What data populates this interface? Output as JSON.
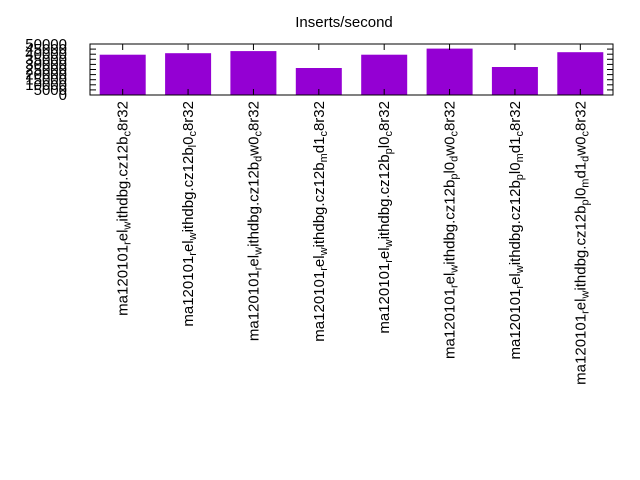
{
  "chart_data": {
    "type": "bar",
    "title": "Inserts/second",
    "xlabel": "",
    "ylabel": "",
    "ylim": [
      0,
      50000
    ],
    "yticks": [
      "0",
      "5000",
      "10000",
      "15000",
      "20000",
      "25000",
      "30000",
      "35000",
      "40000",
      "45000",
      "50000"
    ],
    "grid": false,
    "legend": "none",
    "bar_color": "#9400d3",
    "categories": [
      "ma120101_rel_withdbg.cz12b_c8r32",
      "ma120101_rel_withdbg.cz12b_l0_c8r32",
      "ma120101_rel_withdbg.cz12b_dw0_c8r32",
      "ma120101_rel_withdbg.cz12b_md1_c8r32",
      "ma120101_rel_withdbg.cz12b_pl0_c8r32",
      "ma120101_rel_withdbg.cz12b_pl0_dw0_c8r32",
      "ma120101_rel_withdbg.cz12b_pl0_md1_c8r32",
      "ma120101_rel_withdbg.cz12b_pl0_md1_dw0_c8r32"
    ],
    "category_parts": [
      [
        [
          "ma120101",
          false
        ],
        [
          "r",
          true
        ],
        [
          "el",
          false
        ],
        [
          "w",
          true
        ],
        [
          "ithdbg.cz12b",
          false
        ],
        [
          "c",
          true
        ],
        [
          "8r32",
          false
        ]
      ],
      [
        [
          "ma120101",
          false
        ],
        [
          "r",
          true
        ],
        [
          "el",
          false
        ],
        [
          "w",
          true
        ],
        [
          "ithdbg.cz12b",
          false
        ],
        [
          "l",
          true
        ],
        [
          "0",
          false
        ],
        [
          "c",
          true
        ],
        [
          "8r32",
          false
        ]
      ],
      [
        [
          "ma120101",
          false
        ],
        [
          "r",
          true
        ],
        [
          "el",
          false
        ],
        [
          "w",
          true
        ],
        [
          "ithdbg.cz12b",
          false
        ],
        [
          "d",
          true
        ],
        [
          "w0",
          false
        ],
        [
          "c",
          true
        ],
        [
          "8r32",
          false
        ]
      ],
      [
        [
          "ma120101",
          false
        ],
        [
          "r",
          true
        ],
        [
          "el",
          false
        ],
        [
          "w",
          true
        ],
        [
          "ithdbg.cz12b",
          false
        ],
        [
          "m",
          true
        ],
        [
          "d1",
          false
        ],
        [
          "c",
          true
        ],
        [
          "8r32",
          false
        ]
      ],
      [
        [
          "ma120101",
          false
        ],
        [
          "r",
          true
        ],
        [
          "el",
          false
        ],
        [
          "w",
          true
        ],
        [
          "ithdbg.cz12b",
          false
        ],
        [
          "p",
          true
        ],
        [
          "l0",
          false
        ],
        [
          "c",
          true
        ],
        [
          "8r32",
          false
        ]
      ],
      [
        [
          "ma120101",
          false
        ],
        [
          "r",
          true
        ],
        [
          "el",
          false
        ],
        [
          "w",
          true
        ],
        [
          "ithdbg.cz12b",
          false
        ],
        [
          "p",
          true
        ],
        [
          "l0",
          false
        ],
        [
          "d",
          true
        ],
        [
          "w0",
          false
        ],
        [
          "c",
          true
        ],
        [
          "8r32",
          false
        ]
      ],
      [
        [
          "ma120101",
          false
        ],
        [
          "r",
          true
        ],
        [
          "el",
          false
        ],
        [
          "w",
          true
        ],
        [
          "ithdbg.cz12b",
          false
        ],
        [
          "p",
          true
        ],
        [
          "l0",
          false
        ],
        [
          "m",
          true
        ],
        [
          "d1",
          false
        ],
        [
          "c",
          true
        ],
        [
          "8r32",
          false
        ]
      ],
      [
        [
          "ma120101",
          false
        ],
        [
          "r",
          true
        ],
        [
          "el",
          false
        ],
        [
          "w",
          true
        ],
        [
          "ithdbg.cz12b",
          false
        ],
        [
          "p",
          true
        ],
        [
          "l0",
          false
        ],
        [
          "m",
          true
        ],
        [
          "d1",
          false
        ],
        [
          "d",
          true
        ],
        [
          "w0",
          false
        ],
        [
          "c",
          true
        ],
        [
          "8r32",
          false
        ]
      ]
    ],
    "values": [
      39500,
      41000,
      43000,
      26500,
      39500,
      45500,
      27500,
      42000
    ]
  }
}
